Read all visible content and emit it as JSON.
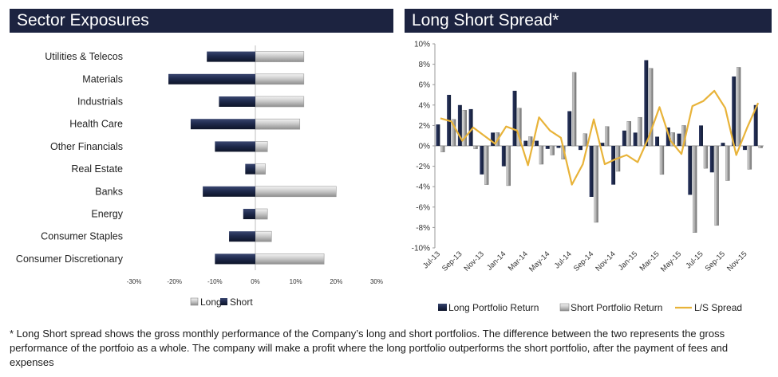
{
  "colors": {
    "title_bg": "#1c2340",
    "title_text": "#ffffff",
    "short_bar": "#1f2a4d",
    "long_bar": "#c6c6c6",
    "long_portfolio_bar": "#101a35",
    "short_portfolio_bar": "#9a9a9a",
    "spread_line": "#e8b339"
  },
  "left_panel": {
    "title": "Sector Exposures"
  },
  "right_panel": {
    "title": "Long Short Spread*"
  },
  "footnote": "* Long Short spread shows the gross monthly performance of the Company’s long and short portfolios. The difference between the two represents the gross performance of the portfoio as a whole. The company will make a profit where the long portfolio outperforms the short portfolio, after the payment of fees and expenses",
  "chart_data": [
    {
      "type": "bar",
      "orientation": "horizontal",
      "title": "Sector Exposures",
      "categories": [
        "Utilities & Telecos",
        "Materials",
        "Industrials",
        "Health Care",
        "Other Financials",
        "Real Estate",
        "Banks",
        "Energy",
        "Consumer Staples",
        "Consumer Discretionary"
      ],
      "series": [
        {
          "name": "Long",
          "values": [
            12,
            12,
            12,
            11,
            3,
            2.5,
            20,
            3,
            4,
            17
          ]
        },
        {
          "name": "Short",
          "values": [
            -12,
            -21.5,
            -9,
            -16,
            -10,
            -2.5,
            -13,
            -3,
            -6.5,
            -10
          ]
        }
      ],
      "xlim": [
        -30,
        30
      ],
      "xticks": [
        "-30%",
        "-20%",
        "-10%",
        "0%",
        "10%",
        "20%",
        "30%"
      ],
      "grid": false,
      "legend": "bottom"
    },
    {
      "type": "bar+line",
      "title": "Long Short Spread*",
      "x": [
        "Jul-13",
        "Aug-13",
        "Sep-13",
        "Oct-13",
        "Nov-13",
        "Dec-13",
        "Jan-14",
        "Feb-14",
        "Mar-14",
        "Apr-14",
        "May-14",
        "Jun-14",
        "Jul-14",
        "Aug-14",
        "Sep-14",
        "Oct-14",
        "Nov-14",
        "Dec-14",
        "Jan-15",
        "Feb-15",
        "Mar-15",
        "Apr-15",
        "May-15",
        "Jun-15",
        "Jul-15",
        "Aug-15",
        "Sep-15",
        "Oct-15",
        "Nov-15",
        "Dec-15"
      ],
      "xticks": [
        "Jul-13",
        "Sep-13",
        "Nov-13",
        "Jan-14",
        "Mar-14",
        "May-14",
        "Jul-14",
        "Sep-14",
        "Nov-14",
        "Jan-15",
        "Mar-15",
        "May-15",
        "Jul-15",
        "Sep-15",
        "Nov-15"
      ],
      "series": [
        {
          "name": "Long Portfolio Return",
          "type": "bar",
          "values": [
            2.1,
            5.0,
            4.0,
            3.6,
            -2.8,
            1.3,
            -2.0,
            5.4,
            0.5,
            0.5,
            -0.3,
            -0.2,
            3.4,
            -0.4,
            -5.0,
            0.3,
            -3.8,
            1.5,
            1.3,
            8.4,
            0.9,
            1.8,
            1.2,
            -4.8,
            2.0,
            -2.6,
            0.3,
            6.8,
            -0.4,
            4.0
          ]
        },
        {
          "name": "Short Portfolio Return",
          "type": "bar",
          "values": [
            -0.6,
            2.6,
            3.5,
            -0.3,
            -3.8,
            1.3,
            -3.9,
            3.7,
            0.9,
            -1.8,
            -0.9,
            -1.3,
            7.2,
            1.2,
            -7.5,
            1.9,
            -2.5,
            2.4,
            2.8,
            7.6,
            -2.8,
            1.3,
            2.0,
            -8.5,
            -2.2,
            -7.8,
            -3.4,
            7.7,
            -2.3,
            -0.2
          ]
        },
        {
          "name": "L/S Spread",
          "type": "line",
          "values": [
            2.7,
            2.4,
            0.5,
            1.8,
            1.0,
            0.2,
            1.9,
            1.5,
            -1.9,
            2.8,
            1.5,
            0.8,
            -3.8,
            -1.8,
            2.6,
            -1.8,
            -1.3,
            -0.9,
            -1.6,
            0.8,
            3.8,
            0.5,
            -0.8,
            3.9,
            4.4,
            5.4,
            3.7,
            -0.9,
            1.8,
            4.2
          ]
        }
      ],
      "ylim": [
        -10,
        10
      ],
      "yticks": [
        "10%",
        "8%",
        "6%",
        "4%",
        "2%",
        "0%",
        "-2%",
        "-4%",
        "-6%",
        "-8%",
        "-10%"
      ],
      "grid": false,
      "legend": "bottom"
    }
  ]
}
